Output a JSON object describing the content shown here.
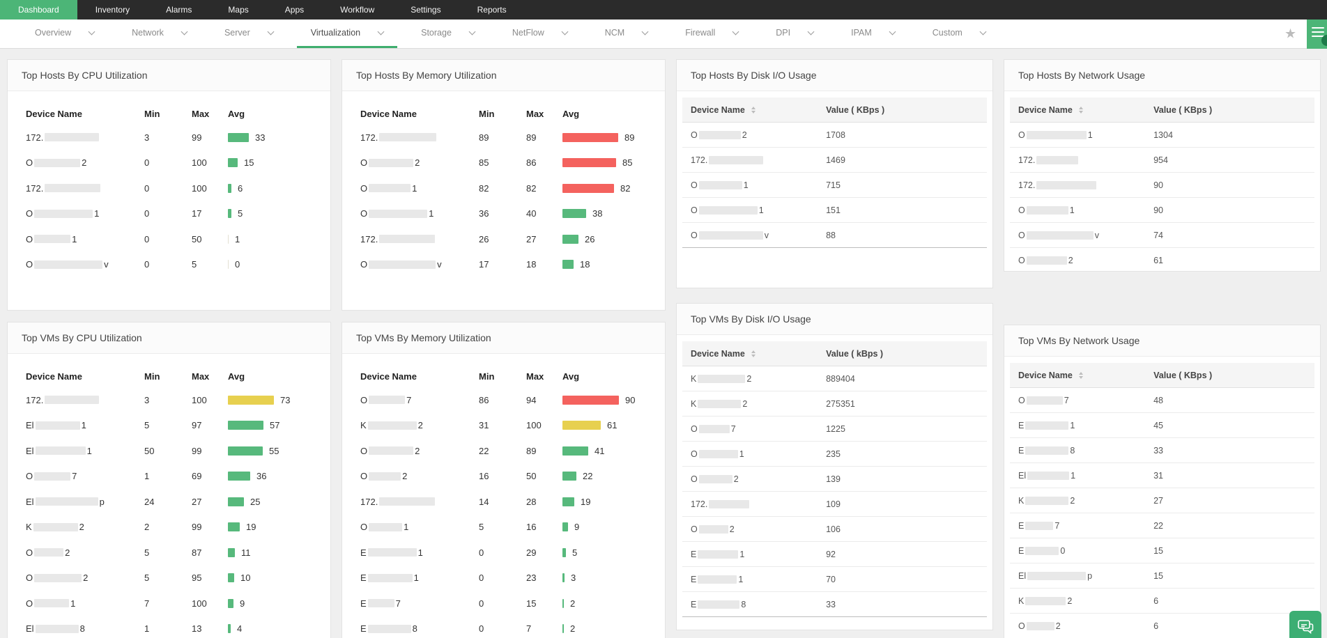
{
  "topnav": {
    "items": [
      {
        "label": "Dashboard",
        "active": true
      },
      {
        "label": "Inventory",
        "active": false
      },
      {
        "label": "Alarms",
        "active": false
      },
      {
        "label": "Maps",
        "active": false
      },
      {
        "label": "Apps",
        "active": false
      },
      {
        "label": "Workflow",
        "active": false
      },
      {
        "label": "Settings",
        "active": false
      },
      {
        "label": "Reports",
        "active": false
      }
    ]
  },
  "tabbar": {
    "items": [
      {
        "label": "Overview",
        "active": false
      },
      {
        "label": "Network",
        "active": false
      },
      {
        "label": "Server",
        "active": false
      },
      {
        "label": "Virtualization",
        "active": true
      },
      {
        "label": "Storage",
        "active": false
      },
      {
        "label": "NetFlow",
        "active": false
      },
      {
        "label": "NCM",
        "active": false
      },
      {
        "label": "Firewall",
        "active": false
      },
      {
        "label": "DPI",
        "active": false
      },
      {
        "label": "IPAM",
        "active": false
      },
      {
        "label": "Custom",
        "active": false
      }
    ],
    "star_icon": "★"
  },
  "colors": {
    "accent_green": "#4cb577",
    "bar_green": "#57b97c",
    "bar_red": "#f4625e",
    "bar_yellow": "#e7d04f"
  },
  "layout": {
    "columns": [
      [
        "hosts_cpu",
        "vms_cpu"
      ],
      [
        "hosts_mem",
        "vms_mem"
      ],
      [
        "hosts_disk",
        "vms_disk"
      ],
      [
        "hosts_net",
        "vms_net"
      ]
    ]
  },
  "panels": {
    "hosts_cpu": {
      "title": "Top Hosts By CPU Utilization",
      "type": "bars",
      "columns": [
        "Device Name",
        "Min",
        "Max",
        "Avg"
      ],
      "rows": [
        {
          "prefix": "172.",
          "blob": 78,
          "suffix": "",
          "min": 3,
          "max": 99,
          "avg": 33,
          "color": "green"
        },
        {
          "prefix": "O",
          "blob": 66,
          "suffix": "2",
          "min": 0,
          "max": 100,
          "avg": 15,
          "color": "green"
        },
        {
          "prefix": "172.",
          "blob": 80,
          "suffix": "",
          "min": 0,
          "max": 100,
          "avg": 6,
          "color": "green"
        },
        {
          "prefix": "O",
          "blob": 84,
          "suffix": "1",
          "min": 0,
          "max": 17,
          "avg": 5,
          "color": "green"
        },
        {
          "prefix": "O",
          "blob": 52,
          "suffix": "1",
          "min": 0,
          "max": 50,
          "avg": 1,
          "color": "green"
        },
        {
          "prefix": "O",
          "blob": 98,
          "suffix": "v",
          "min": 0,
          "max": 5,
          "avg": 0,
          "color": "green"
        }
      ]
    },
    "hosts_mem": {
      "title": "Top Hosts By Memory Utilization",
      "type": "bars",
      "columns": [
        "Device Name",
        "Min",
        "Max",
        "Avg"
      ],
      "rows": [
        {
          "prefix": "172.",
          "blob": 82,
          "suffix": "",
          "min": 89,
          "max": 89,
          "avg": 89,
          "color": "red"
        },
        {
          "prefix": "O",
          "blob": 64,
          "suffix": "2",
          "min": 85,
          "max": 86,
          "avg": 85,
          "color": "red"
        },
        {
          "prefix": "O",
          "blob": 60,
          "suffix": "1",
          "min": 82,
          "max": 82,
          "avg": 82,
          "color": "red"
        },
        {
          "prefix": "O",
          "blob": 84,
          "suffix": "1",
          "min": 36,
          "max": 40,
          "avg": 38,
          "color": "green"
        },
        {
          "prefix": "172.",
          "blob": 80,
          "suffix": "",
          "min": 26,
          "max": 27,
          "avg": 26,
          "color": "green"
        },
        {
          "prefix": "O",
          "blob": 96,
          "suffix": "v",
          "min": 17,
          "max": 18,
          "avg": 18,
          "color": "green"
        }
      ]
    },
    "hosts_disk": {
      "title": "Top Hosts By Disk I/O Usage",
      "type": "table",
      "columns": [
        "Device Name",
        "Value ( KBps )"
      ],
      "rows": [
        {
          "prefix": "O",
          "blob": 60,
          "suffix": "2",
          "value": "1708"
        },
        {
          "prefix": "172.",
          "blob": 78,
          "suffix": "",
          "value": "1469"
        },
        {
          "prefix": "O",
          "blob": 62,
          "suffix": "1",
          "value": "715"
        },
        {
          "prefix": "O",
          "blob": 84,
          "suffix": "1",
          "value": "151"
        },
        {
          "prefix": "O",
          "blob": 92,
          "suffix": "v",
          "value": "88"
        }
      ]
    },
    "hosts_net": {
      "title": "Top Hosts By Network Usage",
      "type": "table",
      "columns": [
        "Device Name",
        "Value ( KBps )"
      ],
      "rows": [
        {
          "prefix": "O",
          "blob": 86,
          "suffix": "1",
          "value": "1304"
        },
        {
          "prefix": "172.",
          "blob": 60,
          "suffix": "",
          "value": "954"
        },
        {
          "prefix": "172.",
          "blob": 86,
          "suffix": "",
          "value": "90"
        },
        {
          "prefix": "O",
          "blob": 60,
          "suffix": "1",
          "value": "90"
        },
        {
          "prefix": "O",
          "blob": 96,
          "suffix": "v",
          "value": "74"
        },
        {
          "prefix": "O",
          "blob": 58,
          "suffix": "2",
          "value": "61"
        }
      ]
    },
    "vms_cpu": {
      "title": "Top VMs By CPU Utilization",
      "type": "bars",
      "columns": [
        "Device Name",
        "Min",
        "Max",
        "Avg"
      ],
      "rows": [
        {
          "prefix": "172.",
          "blob": 78,
          "suffix": "",
          "min": 3,
          "max": 100,
          "avg": 73,
          "color": "yellow"
        },
        {
          "prefix": "El",
          "blob": 64,
          "suffix": "1",
          "min": 5,
          "max": 97,
          "avg": 57,
          "color": "green"
        },
        {
          "prefix": "El",
          "blob": 72,
          "suffix": "1",
          "min": 50,
          "max": 99,
          "avg": 55,
          "color": "green"
        },
        {
          "prefix": "O",
          "blob": 52,
          "suffix": "7",
          "min": 1,
          "max": 69,
          "avg": 36,
          "color": "green"
        },
        {
          "prefix": "El",
          "blob": 90,
          "suffix": "p",
          "min": 24,
          "max": 27,
          "avg": 25,
          "color": "green"
        },
        {
          "prefix": "K",
          "blob": 64,
          "suffix": "2",
          "min": 2,
          "max": 99,
          "avg": 19,
          "color": "green"
        },
        {
          "prefix": "O",
          "blob": 42,
          "suffix": "2",
          "min": 5,
          "max": 87,
          "avg": 11,
          "color": "green"
        },
        {
          "prefix": "O",
          "blob": 68,
          "suffix": "2",
          "min": 5,
          "max": 95,
          "avg": 10,
          "color": "green"
        },
        {
          "prefix": "O",
          "blob": 50,
          "suffix": "1",
          "min": 7,
          "max": 100,
          "avg": 9,
          "color": "green"
        },
        {
          "prefix": "El",
          "blob": 62,
          "suffix": "8",
          "min": 1,
          "max": 13,
          "avg": 4,
          "color": "green"
        }
      ]
    },
    "vms_mem": {
      "title": "Top VMs By Memory Utilization",
      "type": "bars",
      "columns": [
        "Device Name",
        "Min",
        "Max",
        "Avg"
      ],
      "rows": [
        {
          "prefix": "O",
          "blob": 52,
          "suffix": "7",
          "min": 86,
          "max": 94,
          "avg": 90,
          "color": "red"
        },
        {
          "prefix": "K",
          "blob": 70,
          "suffix": "2",
          "min": 31,
          "max": 100,
          "avg": 61,
          "color": "yellow"
        },
        {
          "prefix": "O",
          "blob": 64,
          "suffix": "2",
          "min": 22,
          "max": 89,
          "avg": 41,
          "color": "green"
        },
        {
          "prefix": "O",
          "blob": 46,
          "suffix": "2",
          "min": 16,
          "max": 50,
          "avg": 22,
          "color": "green"
        },
        {
          "prefix": "172.",
          "blob": 80,
          "suffix": "",
          "min": 14,
          "max": 28,
          "avg": 19,
          "color": "green"
        },
        {
          "prefix": "O",
          "blob": 48,
          "suffix": "1",
          "min": 5,
          "max": 16,
          "avg": 9,
          "color": "green"
        },
        {
          "prefix": "E",
          "blob": 70,
          "suffix": "1",
          "min": 0,
          "max": 29,
          "avg": 5,
          "color": "green"
        },
        {
          "prefix": "E",
          "blob": 64,
          "suffix": "1",
          "min": 0,
          "max": 23,
          "avg": 3,
          "color": "green"
        },
        {
          "prefix": "E",
          "blob": 38,
          "suffix": "7",
          "min": 0,
          "max": 15,
          "avg": 2,
          "color": "green"
        },
        {
          "prefix": "E",
          "blob": 62,
          "suffix": "8",
          "min": 0,
          "max": 7,
          "avg": 2,
          "color": "green"
        }
      ]
    },
    "vms_disk": {
      "title": "Top VMs By Disk I/O Usage",
      "type": "table",
      "columns": [
        "Device Name",
        "Value ( kBps )"
      ],
      "rows": [
        {
          "prefix": "K",
          "blob": 68,
          "suffix": "2",
          "value": "889404"
        },
        {
          "prefix": "K",
          "blob": 62,
          "suffix": "2",
          "value": "275351"
        },
        {
          "prefix": "O",
          "blob": 44,
          "suffix": "7",
          "value": "1225"
        },
        {
          "prefix": "O",
          "blob": 56,
          "suffix": "1",
          "value": "235"
        },
        {
          "prefix": "O",
          "blob": 48,
          "suffix": "2",
          "value": "139"
        },
        {
          "prefix": "172.",
          "blob": 58,
          "suffix": "",
          "value": "109"
        },
        {
          "prefix": "O",
          "blob": 42,
          "suffix": "2",
          "value": "106"
        },
        {
          "prefix": "E",
          "blob": 58,
          "suffix": "1",
          "value": "92"
        },
        {
          "prefix": "E",
          "blob": 56,
          "suffix": "1",
          "value": "70"
        },
        {
          "prefix": "E",
          "blob": 60,
          "suffix": "8",
          "value": "33"
        }
      ]
    },
    "vms_net": {
      "title": "Top VMs By Network Usage",
      "type": "table",
      "columns": [
        "Device Name",
        "Value ( KBps )"
      ],
      "rows": [
        {
          "prefix": "O",
          "blob": 52,
          "suffix": "7",
          "value": "48"
        },
        {
          "prefix": "E",
          "blob": 62,
          "suffix": "1",
          "value": "45"
        },
        {
          "prefix": "E",
          "blob": 62,
          "suffix": "8",
          "value": "33"
        },
        {
          "prefix": "El",
          "blob": 60,
          "suffix": "1",
          "value": "31"
        },
        {
          "prefix": "K",
          "blob": 62,
          "suffix": "2",
          "value": "27"
        },
        {
          "prefix": "E",
          "blob": 40,
          "suffix": "7",
          "value": "22"
        },
        {
          "prefix": "E",
          "blob": 48,
          "suffix": "0",
          "value": "15"
        },
        {
          "prefix": "El",
          "blob": 84,
          "suffix": "p",
          "value": "15"
        },
        {
          "prefix": "K",
          "blob": 58,
          "suffix": "2",
          "value": "6"
        },
        {
          "prefix": "O",
          "blob": 40,
          "suffix": "2",
          "value": "6"
        }
      ]
    }
  }
}
